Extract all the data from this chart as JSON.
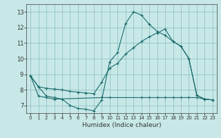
{
  "xlabel": "Humidex (Indice chaleur)",
  "bg_color": "#c8e8e8",
  "grid_color": "#88bbbb",
  "line_color": "#1a6b6b",
  "xlim": [
    -0.5,
    23.5
  ],
  "ylim": [
    6.5,
    13.5
  ],
  "xticks": [
    0,
    1,
    2,
    3,
    4,
    5,
    6,
    7,
    8,
    9,
    10,
    11,
    12,
    13,
    14,
    15,
    16,
    17,
    18,
    19,
    20,
    21,
    22,
    23
  ],
  "yticks": [
    7,
    8,
    9,
    10,
    11,
    12,
    13
  ],
  "line1_x": [
    0,
    1,
    2,
    3,
    4,
    5,
    6,
    7,
    8,
    9,
    10,
    11,
    12,
    13,
    14,
    15,
    16,
    17,
    18,
    19,
    20,
    21,
    22,
    23
  ],
  "line1_y": [
    8.9,
    8.2,
    7.6,
    7.5,
    7.4,
    7.0,
    6.8,
    6.75,
    6.65,
    7.35,
    9.8,
    10.4,
    12.25,
    13.0,
    12.8,
    12.2,
    11.75,
    11.5,
    11.1,
    10.8,
    10.0,
    7.65,
    7.4,
    7.35
  ],
  "line2_x": [
    0,
    1,
    2,
    3,
    4,
    5,
    6,
    7,
    8,
    9,
    10,
    11,
    12,
    13,
    14,
    15,
    16,
    17,
    18,
    19,
    20,
    21,
    22,
    23
  ],
  "line2_y": [
    8.9,
    8.2,
    8.1,
    8.05,
    8.0,
    7.9,
    7.85,
    7.8,
    7.75,
    8.5,
    9.4,
    9.7,
    10.3,
    10.7,
    11.1,
    11.4,
    11.65,
    11.9,
    11.1,
    10.8,
    10.0,
    7.65,
    7.4,
    7.35
  ],
  "line3_x": [
    0,
    1,
    2,
    3,
    9,
    10,
    14,
    15,
    16,
    17,
    18,
    19,
    20,
    21,
    22,
    23
  ],
  "line3_y": [
    8.9,
    7.6,
    7.5,
    7.4,
    7.5,
    7.5,
    7.5,
    7.5,
    7.5,
    7.5,
    7.5,
    7.5,
    7.5,
    7.5,
    7.4,
    7.35
  ]
}
